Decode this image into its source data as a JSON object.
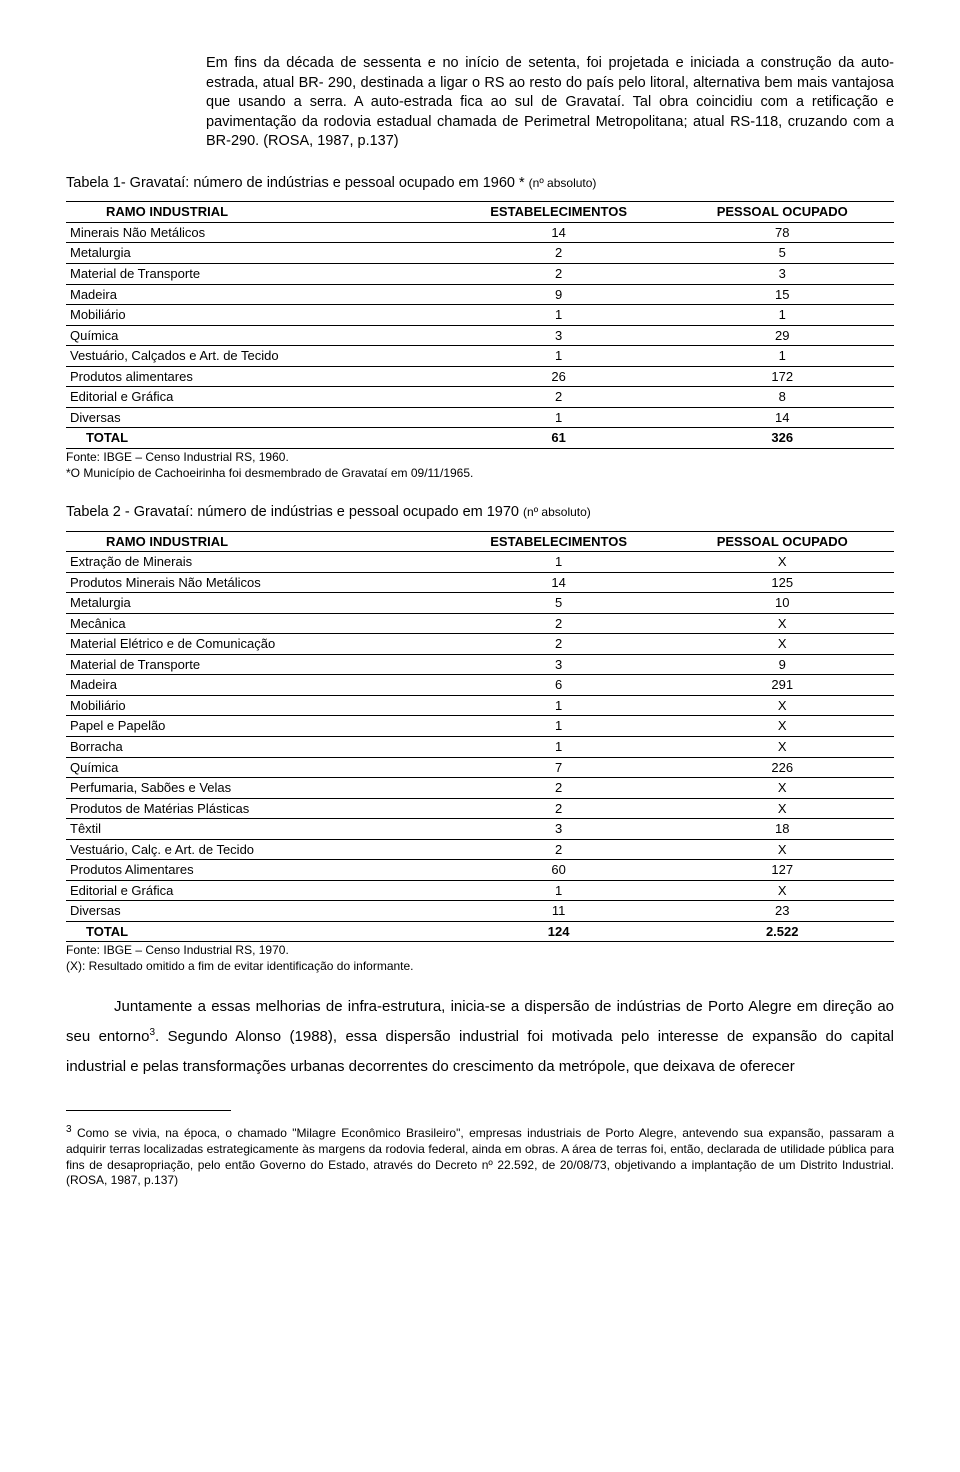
{
  "intro": {
    "p1": "Em fins da década de sessenta e no início de setenta, foi projetada e iniciada a construção da auto-estrada, atual BR- 290, destinada a ligar o RS ao resto do país pelo litoral, alternativa bem mais vantajosa que usando a serra. A auto-estrada fica ao sul de Gravataí. Tal obra coincidiu com a retificação e pavimentação da rodovia estadual chamada de Perimetral Metropolitana; atual RS-118, cruzando com a BR-290. (ROSA, 1987, p.137)"
  },
  "table1": {
    "title_main": "Tabela 1- Gravataí: número de indústrias e pessoal ocupado em 1960 * ",
    "title_sub": "(nº absoluto)",
    "columns": [
      "RAMO INDUSTRIAL",
      "ESTABELECIMENTOS",
      "PESSOAL OCUPADO"
    ],
    "rows": [
      [
        "Minerais Não Metálicos",
        "14",
        "78"
      ],
      [
        "Metalurgia",
        "2",
        "5"
      ],
      [
        "Material de Transporte",
        "2",
        "3"
      ],
      [
        "Madeira",
        "9",
        "15"
      ],
      [
        "Mobiliário",
        "1",
        "1"
      ],
      [
        "Química",
        "3",
        "29"
      ],
      [
        "Vestuário, Calçados e Art. de Tecido",
        "1",
        "1"
      ],
      [
        "Produtos alimentares",
        "26",
        "172"
      ],
      [
        "Editorial e Gráfica",
        "2",
        "8"
      ],
      [
        "Diversas",
        "1",
        "14"
      ]
    ],
    "total": [
      "TOTAL",
      "61",
      "326"
    ],
    "foot1": "Fonte: IBGE – Censo Industrial RS, 1960.",
    "foot2": "*O Município de Cachoeirinha foi  desmembrado de Gravataí em 09/11/1965."
  },
  "table2": {
    "title_main": "Tabela 2 - Gravataí: número de indústrias e pessoal ocupado em 1970 ",
    "title_sub": "(nº absoluto)",
    "columns": [
      "RAMO INDUSTRIAL",
      "ESTABELECIMENTOS",
      "PESSOAL OCUPADO"
    ],
    "rows": [
      [
        "Extração de Minerais",
        "1",
        "X"
      ],
      [
        "Produtos Minerais Não Metálicos",
        "14",
        "125"
      ],
      [
        "Metalurgia",
        "5",
        "10"
      ],
      [
        "Mecânica",
        "2",
        "X"
      ],
      [
        "Material Elétrico e de Comunicação",
        "2",
        "X"
      ],
      [
        "Material de Transporte",
        "3",
        "9"
      ],
      [
        "Madeira",
        "6",
        "291"
      ],
      [
        "Mobiliário",
        "1",
        "X"
      ],
      [
        "Papel e Papelão",
        "1",
        "X"
      ],
      [
        "Borracha",
        "1",
        "X"
      ],
      [
        "Química",
        "7",
        "226"
      ],
      [
        "Perfumaria, Sabões e Velas",
        "2",
        "X"
      ],
      [
        "Produtos de Matérias Plásticas",
        "2",
        "X"
      ],
      [
        "Têxtil",
        "3",
        "18"
      ],
      [
        "Vestuário, Calç. e Art. de Tecido",
        "2",
        "X"
      ],
      [
        "Produtos Alimentares",
        "60",
        "127"
      ],
      [
        "Editorial e Gráfica",
        "1",
        "X"
      ],
      [
        "Diversas",
        "11",
        "23"
      ]
    ],
    "total": [
      "TOTAL",
      "124",
      "2.522"
    ],
    "foot1": "Fonte: IBGE – Censo Industrial RS, 1970.",
    "foot2": "(X): Resultado omitido a fim de evitar identificação do informante."
  },
  "body": {
    "p1_a": "Juntamente a essas melhorias de infra-estrutura, inicia-se a dispersão de indústrias de Porto Alegre em direção ao seu entorno",
    "p1_sup": "3",
    "p1_b": ". Segundo Alonso (1988), essa dispersão industrial foi motivada pelo interesse de expansão do capital industrial e pelas transformações urbanas decorrentes do crescimento da metrópole, que deixava de oferecer"
  },
  "endnote": {
    "sup": "3",
    "text": " Como se vivia, na época, o chamado \"Milagre Econômico Brasileiro\", empresas industriais de Porto Alegre, antevendo sua expansão, passaram a adquirir terras localizadas estrategicamente às margens da rodovia federal, ainda em obras. A área de terras foi, então, declarada de utilidade pública para fins de desapropriação, pelo então Governo do Estado, através do Decreto nº 22.592, de 20/08/73, objetivando a implantação de um Distrito Industrial. (ROSA, 1987, p.137)"
  }
}
